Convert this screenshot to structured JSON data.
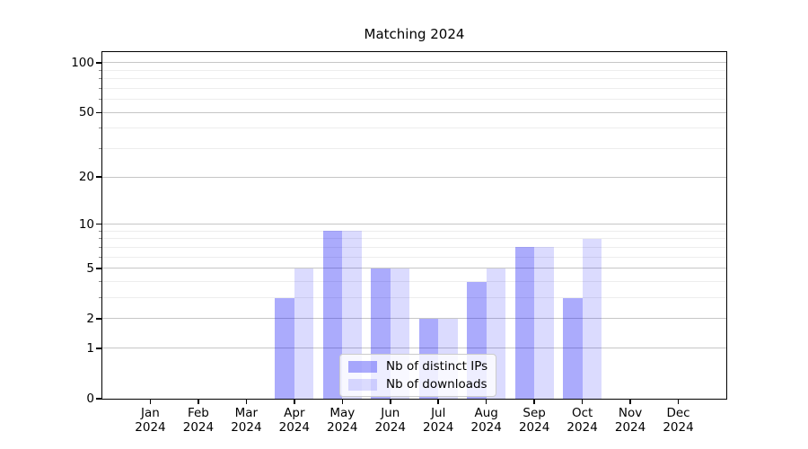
{
  "chart_data": {
    "type": "bar",
    "title": "Matching 2024",
    "categories": [
      "Jan",
      "Feb",
      "Mar",
      "Apr",
      "May",
      "Jun",
      "Jul",
      "Aug",
      "Sep",
      "Oct",
      "Nov",
      "Dec"
    ],
    "category_year": "2024",
    "series": [
      {
        "name": "Nb of distinct IPs",
        "fill": "rgba(15,15,245,0.35)",
        "values": [
          0,
          0,
          0,
          3,
          9,
          5,
          2,
          4,
          7,
          3,
          0,
          0
        ]
      },
      {
        "name": "Nb of downloads",
        "fill": "rgba(15,15,245,0.15)",
        "values": [
          0,
          0,
          0,
          5,
          9,
          5,
          2,
          5,
          7,
          8,
          0,
          0
        ]
      }
    ],
    "yscale": "log1p",
    "ylim": [
      0,
      116
    ],
    "y_major_ticks": [
      0,
      1,
      2,
      5,
      10,
      20,
      50,
      100
    ],
    "y_minor_ticks": [
      3,
      4,
      6,
      7,
      8,
      9,
      30,
      40,
      60,
      70,
      80,
      90
    ],
    "grid": "on",
    "legend_position": "lower-center"
  },
  "colors": {
    "grid_major": "#c6c6c6",
    "grid_minor": "#ededed",
    "axis": "#000000",
    "legend_border": "#cccccc",
    "legend_bg": "rgba(255,255,255,0.8)"
  }
}
